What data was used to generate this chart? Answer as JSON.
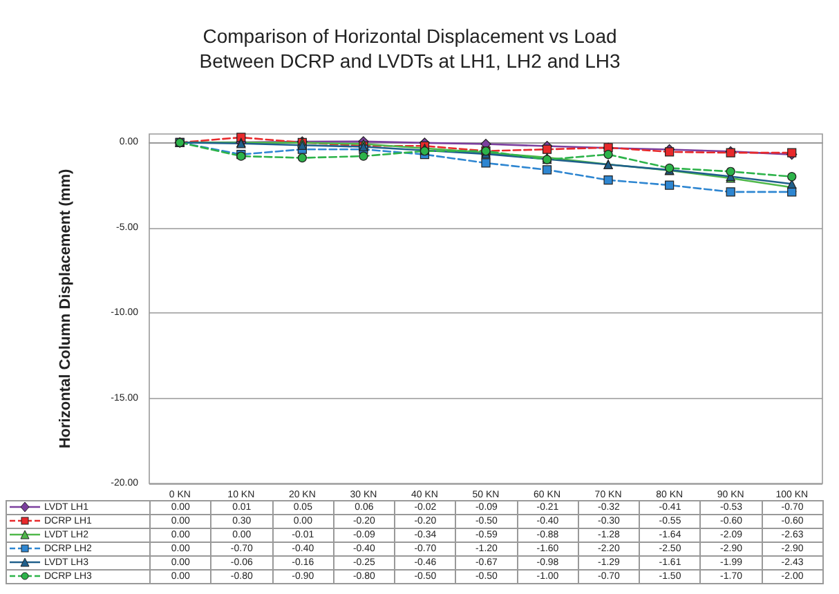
{
  "chart_data": {
    "type": "line",
    "title": "Comparison of Horizontal Displacement vs Load\nBetween DCRP and LVDTs at LH1, LH2 and LH3",
    "ylabel": "Horizontal Column Displacement (mm)",
    "categories": [
      "0 KN",
      "10 KN",
      "20 KN",
      "30 KN",
      "40 KN",
      "50 KN",
      "60 KN",
      "70 KN",
      "80 KN",
      "90 KN",
      "100 KN"
    ],
    "series": [
      {
        "name": "LVDT LH1",
        "color": "#7b3f9e",
        "marker": "diamond",
        "line_style": "solid",
        "values": [
          0.0,
          0.01,
          0.05,
          0.06,
          -0.02,
          -0.09,
          -0.21,
          -0.32,
          -0.41,
          -0.53,
          -0.7
        ],
        "value_labels": [
          "0.00",
          "0.01",
          "0.05",
          "0.06",
          "-0.02",
          "-0.09",
          "-0.21",
          "-0.32",
          "-0.41",
          "-0.53",
          "-0.70"
        ]
      },
      {
        "name": "DCRP LH1",
        "color": "#e8292b",
        "marker": "square",
        "line_style": "dashed",
        "values": [
          0.0,
          0.3,
          0.0,
          -0.2,
          -0.2,
          -0.5,
          -0.4,
          -0.3,
          -0.55,
          -0.6,
          -0.6
        ],
        "value_labels": [
          "0.00",
          "0.30",
          "0.00",
          "-0.20",
          "-0.20",
          "-0.50",
          "-0.40",
          "-0.30",
          "-0.55",
          "-0.60",
          "-0.60"
        ]
      },
      {
        "name": "LVDT LH2",
        "color": "#4fb84a",
        "marker": "triangle",
        "line_style": "solid",
        "values": [
          0.0,
          0.0,
          -0.01,
          -0.09,
          -0.34,
          -0.59,
          -0.88,
          -1.28,
          -1.64,
          -2.09,
          -2.63
        ],
        "value_labels": [
          "0.00",
          "0.00",
          "-0.01",
          "-0.09",
          "-0.34",
          "-0.59",
          "-0.88",
          "-1.28",
          "-1.64",
          "-2.09",
          "-2.63"
        ]
      },
      {
        "name": "DCRP LH2",
        "color": "#2e86d1",
        "marker": "square",
        "line_style": "dashed",
        "values": [
          0.0,
          -0.7,
          -0.4,
          -0.4,
          -0.7,
          -1.2,
          -1.6,
          -2.2,
          -2.5,
          -2.9,
          -2.9
        ],
        "value_labels": [
          "0.00",
          "-0.70",
          "-0.40",
          "-0.40",
          "-0.70",
          "-1.20",
          "-1.60",
          "-2.20",
          "-2.50",
          "-2.90",
          "-2.90"
        ]
      },
      {
        "name": "LVDT LH3",
        "color": "#1f5f8b",
        "marker": "triangle",
        "line_style": "solid",
        "values": [
          0.0,
          -0.06,
          -0.16,
          -0.25,
          -0.46,
          -0.67,
          -0.98,
          -1.29,
          -1.61,
          -1.99,
          -2.43
        ],
        "value_labels": [
          "0.00",
          "-0.06",
          "-0.16",
          "-0.25",
          "-0.46",
          "-0.67",
          "-0.98",
          "-1.29",
          "-1.61",
          "-1.99",
          "-2.43"
        ]
      },
      {
        "name": "DCRP LH3",
        "color": "#2db34a",
        "marker": "circle",
        "line_style": "dashed",
        "values": [
          0.0,
          -0.8,
          -0.9,
          -0.8,
          -0.5,
          -0.5,
          -1.0,
          -0.7,
          -1.5,
          -1.7,
          -2.0
        ],
        "value_labels": [
          "0.00",
          "-0.80",
          "-0.90",
          "-0.80",
          "-0.50",
          "-0.50",
          "-1.00",
          "-0.70",
          "-1.50",
          "-1.70",
          "-2.00"
        ]
      }
    ],
    "ylim": [
      -20,
      0.5
    ],
    "yticks": [
      {
        "value": -20,
        "label": "-20.00"
      },
      {
        "value": -15,
        "label": "-15.00"
      },
      {
        "value": -10,
        "label": "-10.00"
      },
      {
        "value": -5,
        "label": "-5.00"
      },
      {
        "value": 0,
        "label": "0.00"
      }
    ],
    "grid": "y",
    "legend": "bottom left"
  }
}
